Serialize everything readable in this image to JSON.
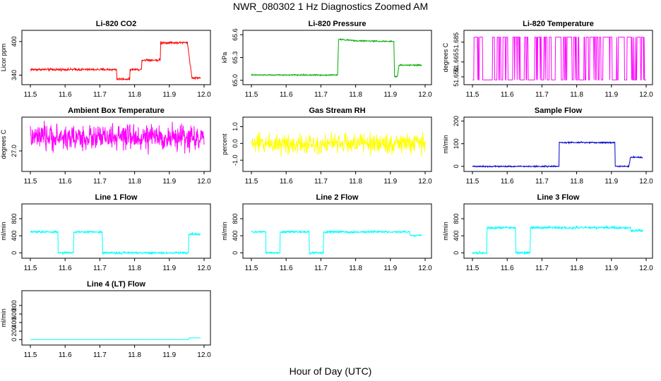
{
  "figure": {
    "title": "NWR_080302  1 Hz Diagnostics Zoomed AM",
    "xlabel": "Hour of Day (UTC)"
  },
  "colors": {
    "red": "#ff0000",
    "green": "#00aa00",
    "magenta": "#ff00ff",
    "yellow": "#ffff00",
    "blue": "#0000cc",
    "cyan": "#00ffff"
  },
  "chart_data": [
    {
      "id": "co2",
      "type": "line",
      "title": "Li-820 CO2",
      "ylabel": "Licor ppm",
      "xlim": [
        11.5,
        12.0
      ],
      "xticks": [
        11.5,
        11.6,
        11.7,
        11.8,
        11.9,
        12.0
      ],
      "ylim": [
        328,
        415
      ],
      "yticks": [
        340,
        400
      ],
      "ytick_labels": [
        "340",
        "400"
      ],
      "color": "red",
      "series": [
        {
          "name": "CO2",
          "x": [
            11.5,
            11.748,
            11.749,
            11.758,
            11.786,
            11.787,
            11.82,
            11.821,
            11.874,
            11.875,
            11.952,
            11.965,
            11.99
          ],
          "y": [
            350,
            350,
            333,
            333,
            333,
            350,
            350,
            367,
            367,
            398,
            398,
            335,
            335
          ],
          "noise": 1
        }
      ]
    },
    {
      "id": "pressure",
      "type": "line",
      "title": "Li-820 Pressure",
      "ylabel": "kPa",
      "xlim": [
        11.5,
        12.0
      ],
      "xticks": [
        11.5,
        11.6,
        11.7,
        11.8,
        11.9,
        12.0
      ],
      "ylim": [
        64.98,
        65.62
      ],
      "yticks": [
        65.0,
        65.3,
        65.6
      ],
      "ytick_labels": [
        "65.0",
        "65.3",
        "65.6"
      ],
      "color": "green",
      "series": [
        {
          "name": "Pressure",
          "x": [
            11.5,
            11.748,
            11.751,
            11.8,
            11.91,
            11.912,
            11.92,
            11.925,
            11.99
          ],
          "y": [
            65.07,
            65.07,
            65.54,
            65.52,
            65.51,
            65.05,
            65.05,
            65.2,
            65.2
          ],
          "noise": 0.004
        }
      ]
    },
    {
      "id": "licor-temp",
      "type": "line",
      "title": "Li-820 Temperature",
      "ylabel": "degrees C",
      "xlim": [
        11.5,
        12.0
      ],
      "xticks": [
        11.5,
        11.6,
        11.7,
        11.8,
        11.9,
        12.0
      ],
      "ylim": [
        51.645,
        51.694
      ],
      "yticks": [
        51.65,
        51.665,
        51.685
      ],
      "ytick_labels": [
        "51.650",
        "51.665",
        "51.685"
      ],
      "color": "magenta",
      "series": [
        {
          "name": "Temperature",
          "x": [
            11.5,
            12.0
          ],
          "y": [
            51.647,
            51.69
          ],
          "pattern": "switching"
        }
      ]
    },
    {
      "id": "ambient-temp",
      "type": "line",
      "title": "Ambient Box Temperature",
      "ylabel": "degrees C",
      "xlim": [
        11.5,
        12.0
      ],
      "xticks": [
        11.5,
        11.6,
        11.7,
        11.8,
        11.9,
        12.0
      ],
      "ylim": [
        26.6,
        27.7
      ],
      "yticks": [
        27.0
      ],
      "ytick_labels": [
        "27.0"
      ],
      "color": "magenta",
      "series": [
        {
          "name": "Ambient",
          "x": [
            11.5,
            12.0
          ],
          "y": [
            27.3,
            27.3
          ],
          "noise": 0.14
        }
      ]
    },
    {
      "id": "rh",
      "type": "line",
      "title": "Gas Stream RH",
      "ylabel": "percent",
      "xlim": [
        11.5,
        12.0
      ],
      "xticks": [
        11.5,
        11.6,
        11.7,
        11.8,
        11.9,
        12.0
      ],
      "ylim": [
        -1.5,
        1.4
      ],
      "yticks": [
        -1.0,
        0.0,
        1.0
      ],
      "ytick_labels": [
        "-1.0",
        "0.0",
        "1.0"
      ],
      "color": "yellow",
      "series": [
        {
          "name": "RH",
          "x": [
            11.5,
            12.0
          ],
          "y": [
            0.0,
            0.0
          ],
          "noise": 0.3
        }
      ]
    },
    {
      "id": "sample-flow",
      "type": "line",
      "title": "Sample Flow",
      "ylabel": "ml/min",
      "xlim": [
        11.5,
        12.0
      ],
      "xticks": [
        11.5,
        11.6,
        11.7,
        11.8,
        11.9,
        12.0
      ],
      "ylim": [
        -10,
        205
      ],
      "yticks": [
        0,
        100,
        200
      ],
      "ytick_labels": [
        "0",
        "100",
        "200"
      ],
      "color": "blue",
      "series": [
        {
          "name": "Sample",
          "x": [
            11.5,
            11.749,
            11.75,
            11.91,
            11.911,
            11.95,
            11.955,
            11.99
          ],
          "y": [
            0,
            0,
            105,
            105,
            0,
            0,
            40,
            40
          ],
          "noise": 1.5
        }
      ]
    },
    {
      "id": "line1-flow",
      "type": "line",
      "title": "Line 1 Flow",
      "ylabel": "ml/min",
      "xlim": [
        11.5,
        12.0
      ],
      "xticks": [
        11.5,
        11.6,
        11.7,
        11.8,
        11.9,
        12.0
      ],
      "ylim": [
        -60,
        1080
      ],
      "yticks": [
        0,
        400,
        800
      ],
      "ytick_labels": [
        "0",
        "400",
        "800"
      ],
      "color": "cyan",
      "series": [
        {
          "name": "Line 1",
          "x": [
            11.5,
            11.579,
            11.58,
            11.624,
            11.625,
            11.707,
            11.708,
            11.955,
            11.956,
            11.99
          ],
          "y": [
            490,
            490,
            0,
            0,
            490,
            490,
            0,
            0,
            440,
            440
          ],
          "noise": 12
        }
      ]
    },
    {
      "id": "line2-flow",
      "type": "line",
      "title": "Line 2 Flow",
      "ylabel": "ml/min",
      "xlim": [
        11.5,
        12.0
      ],
      "xticks": [
        11.5,
        11.6,
        11.7,
        11.8,
        11.9,
        12.0
      ],
      "ylim": [
        -60,
        1080
      ],
      "yticks": [
        0,
        400,
        800
      ],
      "ytick_labels": [
        "0",
        "400",
        "800"
      ],
      "color": "cyan",
      "series": [
        {
          "name": "Line 2",
          "x": [
            11.5,
            11.541,
            11.542,
            11.582,
            11.583,
            11.666,
            11.667,
            11.707,
            11.708,
            11.955,
            11.956,
            11.99
          ],
          "y": [
            490,
            490,
            0,
            0,
            490,
            490,
            0,
            0,
            490,
            490,
            410,
            410
          ],
          "noise": 12
        }
      ]
    },
    {
      "id": "line3-flow",
      "type": "line",
      "title": "Line 3 Flow",
      "ylabel": "ml/min",
      "xlim": [
        11.5,
        12.0
      ],
      "xticks": [
        11.5,
        11.6,
        11.7,
        11.8,
        11.9,
        12.0
      ],
      "ylim": [
        -60,
        1080
      ],
      "yticks": [
        0,
        400,
        800
      ],
      "ytick_labels": [
        "0",
        "400",
        "800"
      ],
      "color": "cyan",
      "series": [
        {
          "name": "Line 3",
          "x": [
            11.5,
            11.541,
            11.542,
            11.624,
            11.625,
            11.666,
            11.667,
            11.955,
            11.956,
            11.99
          ],
          "y": [
            0,
            0,
            590,
            590,
            0,
            0,
            590,
            590,
            520,
            520
          ],
          "noise": 14
        }
      ]
    },
    {
      "id": "line4-flow",
      "type": "line",
      "title": "Line 4 (LT) Flow",
      "ylabel": "ml/min",
      "xlim": [
        11.5,
        12.0
      ],
      "xticks": [
        11.5,
        11.6,
        11.7,
        11.8,
        11.9,
        12.0
      ],
      "ylim": [
        -60,
        1080
      ],
      "yticks": [
        0,
        200,
        400,
        600,
        800
      ],
      "ytick_labels": [
        "0",
        "200",
        "400",
        "600",
        "800"
      ],
      "color": "cyan",
      "series": [
        {
          "name": "Line 4",
          "x": [
            11.5,
            11.955,
            11.956,
            11.99
          ],
          "y": [
            0,
            0,
            40,
            40
          ],
          "noise": 1
        }
      ]
    }
  ]
}
